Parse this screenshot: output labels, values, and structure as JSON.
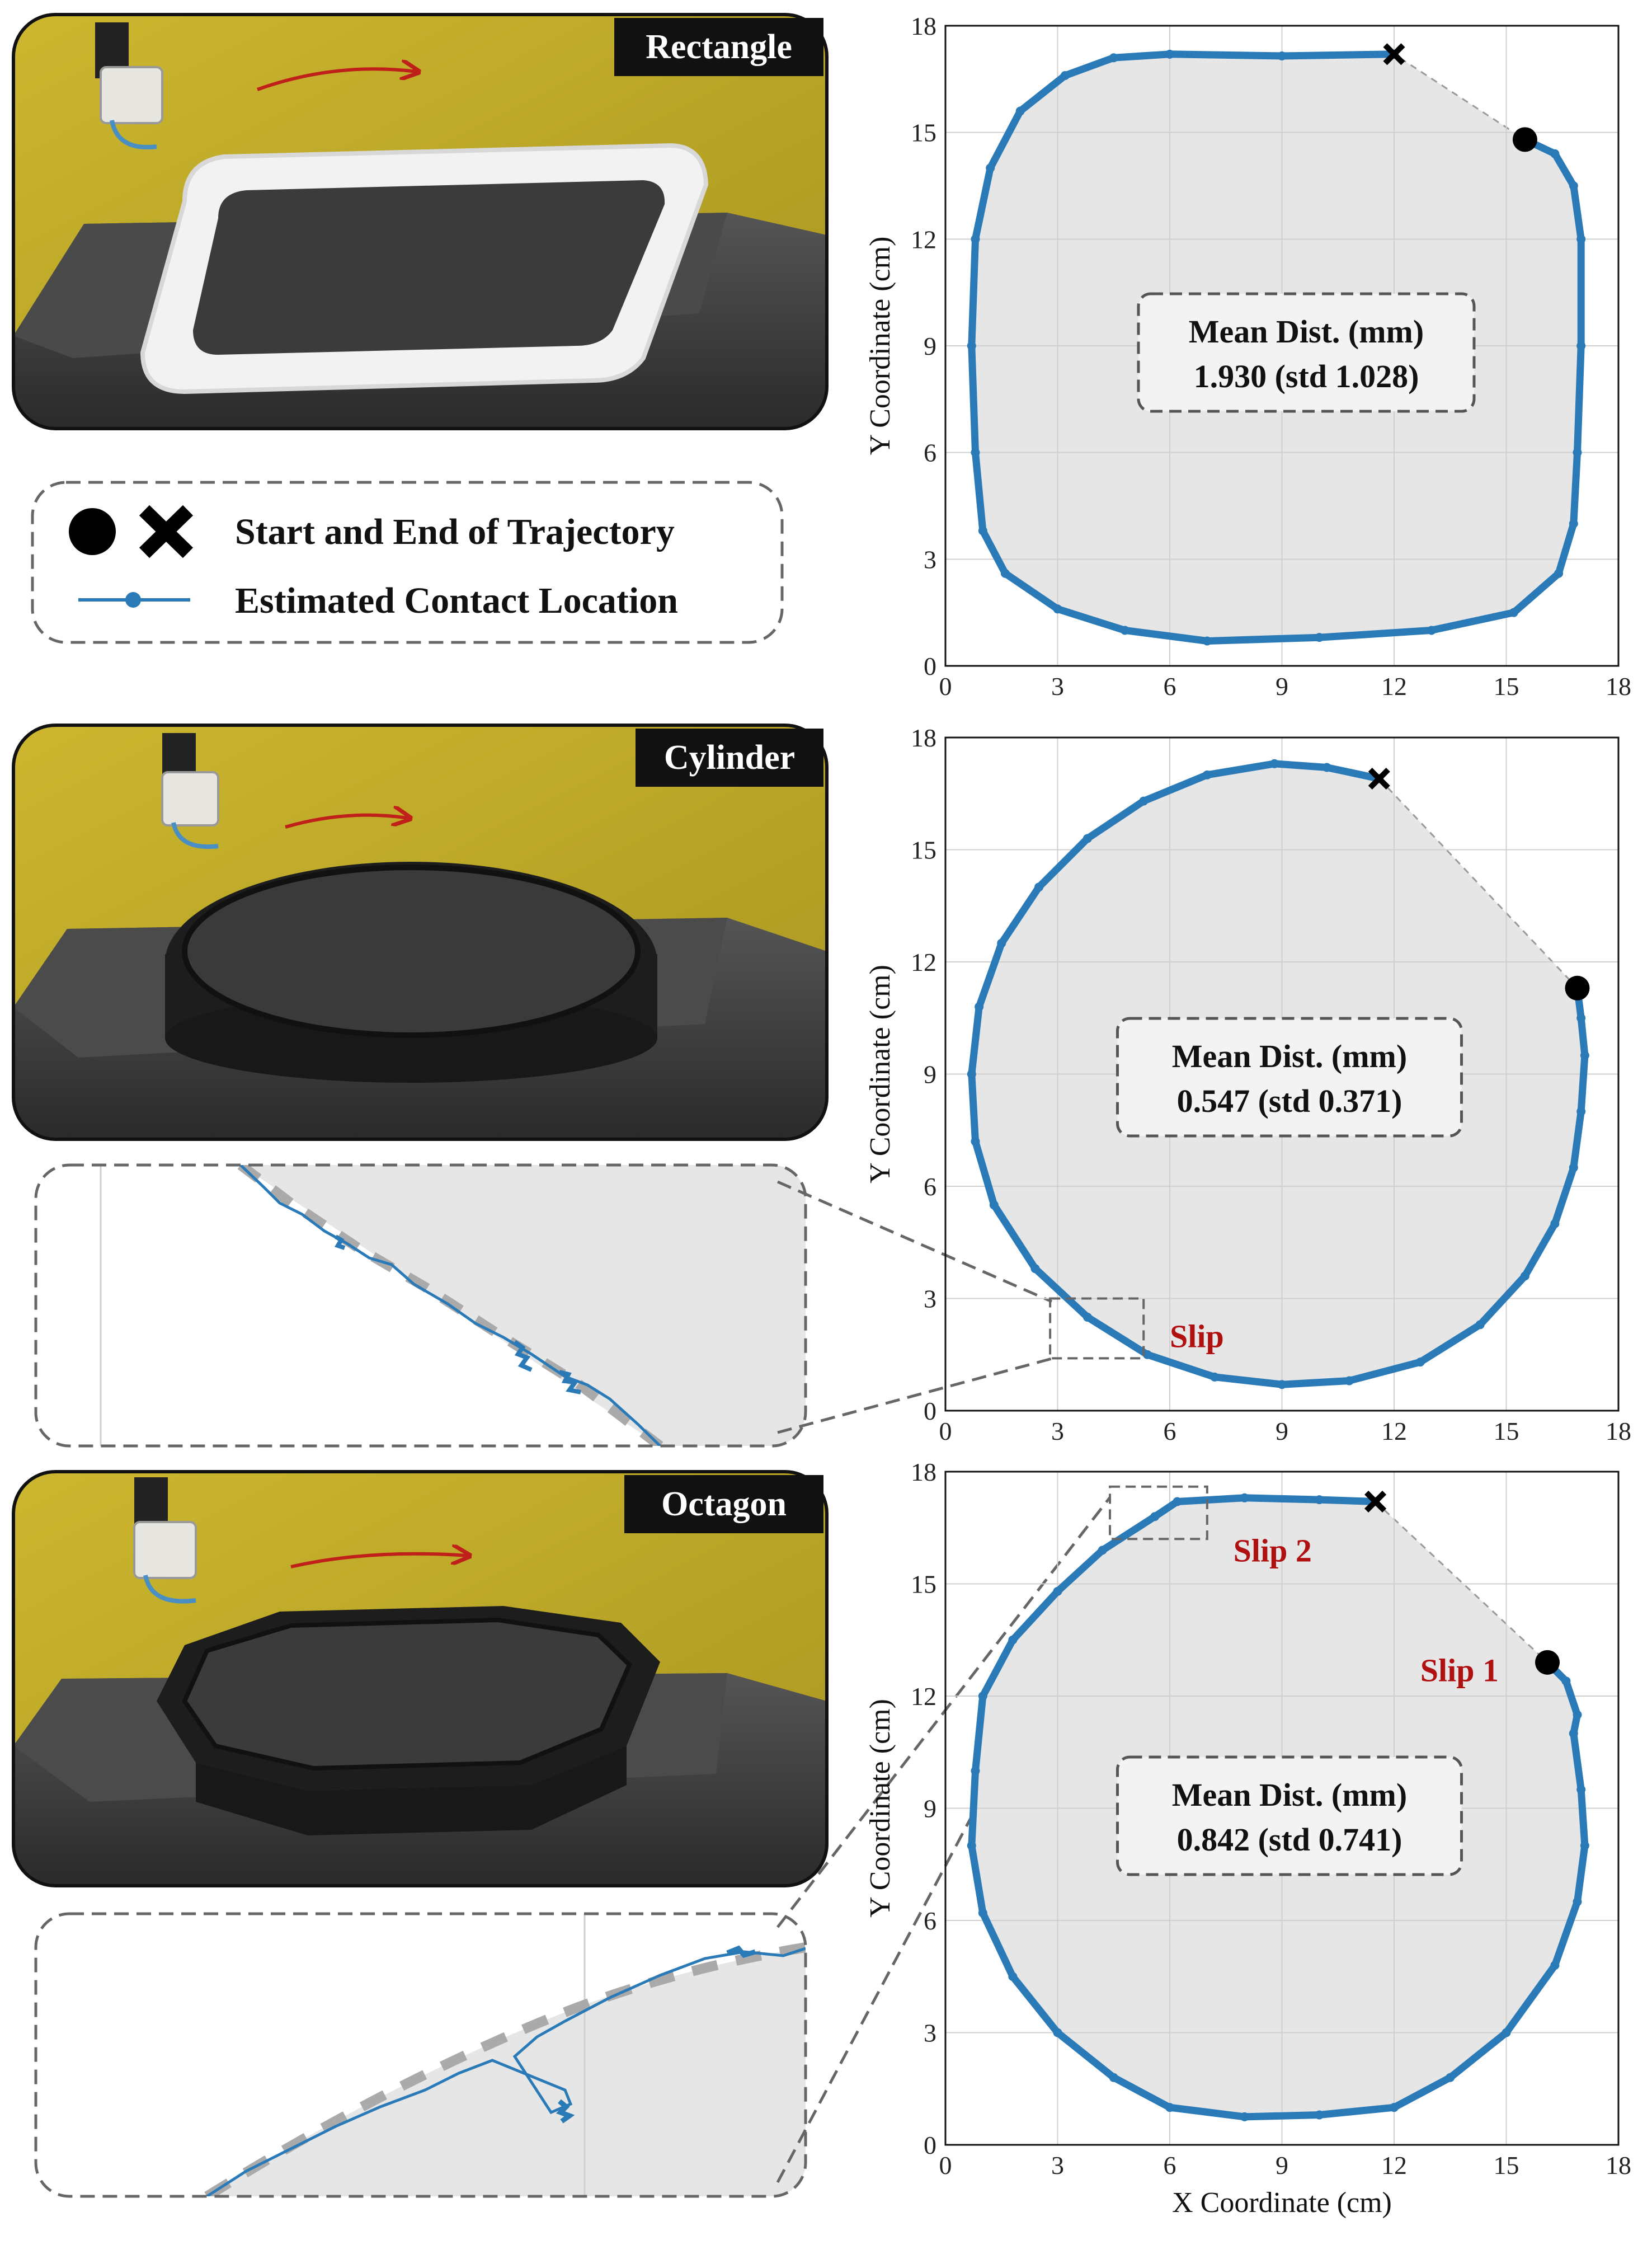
{
  "legend": {
    "start_end_label": "Start and End of Trajectory",
    "contact_label": "Estimated Contact Location",
    "start_marker": "filled-circle-icon",
    "end_marker": "x-cross-icon"
  },
  "photos": [
    {
      "label": "Rectangle",
      "description_icon": "robot-tracing-rectangle-photo"
    },
    {
      "label": "Cylinder",
      "description_icon": "robot-tracing-cylinder-photo"
    },
    {
      "label": "Octagon",
      "description_icon": "robot-tracing-octagon-photo"
    }
  ],
  "colors": {
    "trajectory": "#2a7ab8",
    "fill": "#e6e6e6",
    "slip": "#b01010",
    "photo_wall": "#c9b52c",
    "photo_block": "#3d3d3d"
  },
  "chart_data": [
    {
      "type": "scatter",
      "shape": "Rectangle",
      "xlabel": "",
      "ylabel": "Y Coordinate (cm)",
      "xlim": [
        0,
        18
      ],
      "ylim": [
        0,
        18
      ],
      "xticks": [
        "0",
        "3",
        "6",
        "9",
        "12",
        "15",
        "18"
      ],
      "yticks": [
        "0",
        "3",
        "6",
        "9",
        "12",
        "15",
        "18"
      ],
      "grid": true,
      "annotation": {
        "line1": "Mean Dist. (mm)",
        "line2": "1.930 (std 1.028)"
      },
      "start": [
        15.5,
        14.8
      ],
      "end": [
        12.0,
        17.2
      ],
      "path": [
        [
          15.5,
          14.8
        ],
        [
          16.3,
          14.4
        ],
        [
          16.8,
          13.5
        ],
        [
          17.0,
          12
        ],
        [
          17.0,
          9
        ],
        [
          16.9,
          6
        ],
        [
          16.8,
          4
        ],
        [
          16.4,
          2.6
        ],
        [
          15.2,
          1.5
        ],
        [
          13.0,
          1.0
        ],
        [
          10.0,
          0.8
        ],
        [
          7.0,
          0.7
        ],
        [
          4.8,
          1.0
        ],
        [
          3.0,
          1.6
        ],
        [
          1.6,
          2.6
        ],
        [
          1.0,
          3.8
        ],
        [
          0.8,
          6
        ],
        [
          0.7,
          9
        ],
        [
          0.8,
          12
        ],
        [
          1.2,
          14.0
        ],
        [
          2.0,
          15.6
        ],
        [
          3.2,
          16.6
        ],
        [
          4.5,
          17.1
        ],
        [
          6,
          17.2
        ],
        [
          9,
          17.15
        ],
        [
          12.0,
          17.2
        ]
      ]
    },
    {
      "type": "scatter",
      "shape": "Cylinder",
      "xlabel": "",
      "ylabel": "Y Coordinate (cm)",
      "xlim": [
        0,
        18
      ],
      "ylim": [
        0,
        18
      ],
      "xticks": [
        "0",
        "3",
        "6",
        "9",
        "12",
        "15",
        "18"
      ],
      "yticks": [
        "0",
        "3",
        "6",
        "9",
        "12",
        "15",
        "18"
      ],
      "grid": true,
      "annotation": {
        "line1": "Mean Dist. (mm)",
        "line2": "0.547 (std 0.371)"
      },
      "slip_label": "Slip",
      "start": [
        16.9,
        11.3
      ],
      "end": [
        11.6,
        16.9
      ],
      "path": [
        [
          16.9,
          11.3
        ],
        [
          17.0,
          10.5
        ],
        [
          17.1,
          9.5
        ],
        [
          17.0,
          8.0
        ],
        [
          16.8,
          6.5
        ],
        [
          16.3,
          5.0
        ],
        [
          15.5,
          3.6
        ],
        [
          14.3,
          2.3
        ],
        [
          12.7,
          1.3
        ],
        [
          10.8,
          0.8
        ],
        [
          9.0,
          0.7
        ],
        [
          7.2,
          0.9
        ],
        [
          5.4,
          1.5
        ],
        [
          3.8,
          2.5
        ],
        [
          2.4,
          3.8
        ],
        [
          1.3,
          5.5
        ],
        [
          0.8,
          7.2
        ],
        [
          0.7,
          9.0
        ],
        [
          0.9,
          10.8
        ],
        [
          1.5,
          12.5
        ],
        [
          2.5,
          14.0
        ],
        [
          3.8,
          15.3
        ],
        [
          5.3,
          16.3
        ],
        [
          7.0,
          17.0
        ],
        [
          8.8,
          17.3
        ],
        [
          10.2,
          17.2
        ],
        [
          11.6,
          16.9
        ]
      ]
    },
    {
      "type": "scatter",
      "shape": "Octagon",
      "xlabel": "X Coordinate (cm)",
      "ylabel": "Y Coordinate (cm)",
      "xlim": [
        0,
        18
      ],
      "ylim": [
        0,
        18
      ],
      "xticks": [
        "0",
        "3",
        "6",
        "9",
        "12",
        "15",
        "18"
      ],
      "yticks": [
        "0",
        "3",
        "6",
        "9",
        "12",
        "15",
        "18"
      ],
      "grid": true,
      "annotation": {
        "line1": "Mean Dist. (mm)",
        "line2": "0.842 (std 0.741)"
      },
      "slip_labels": [
        "Slip 1",
        "Slip 2"
      ],
      "start": [
        16.1,
        12.9
      ],
      "end": [
        11.5,
        17.2
      ],
      "path": [
        [
          16.1,
          12.9
        ],
        [
          16.6,
          12.4
        ],
        [
          16.9,
          11.5
        ],
        [
          16.8,
          11.0
        ],
        [
          17.0,
          9.5
        ],
        [
          17.1,
          8
        ],
        [
          16.9,
          6.5
        ],
        [
          16.3,
          4.8
        ],
        [
          15.0,
          3.0
        ],
        [
          13.5,
          1.8
        ],
        [
          12.0,
          1.0
        ],
        [
          10.0,
          0.8
        ],
        [
          8.0,
          0.75
        ],
        [
          6.0,
          1.0
        ],
        [
          4.5,
          1.8
        ],
        [
          3.0,
          3.0
        ],
        [
          1.8,
          4.5
        ],
        [
          1.0,
          6.2
        ],
        [
          0.7,
          8
        ],
        [
          0.8,
          10
        ],
        [
          1.0,
          12.0
        ],
        [
          1.8,
          13.5
        ],
        [
          3.0,
          14.8
        ],
        [
          4.2,
          15.9
        ],
        [
          5.6,
          16.8
        ],
        [
          6.2,
          17.2
        ],
        [
          8.0,
          17.3
        ],
        [
          10.0,
          17.25
        ],
        [
          11.5,
          17.2
        ]
      ]
    }
  ]
}
